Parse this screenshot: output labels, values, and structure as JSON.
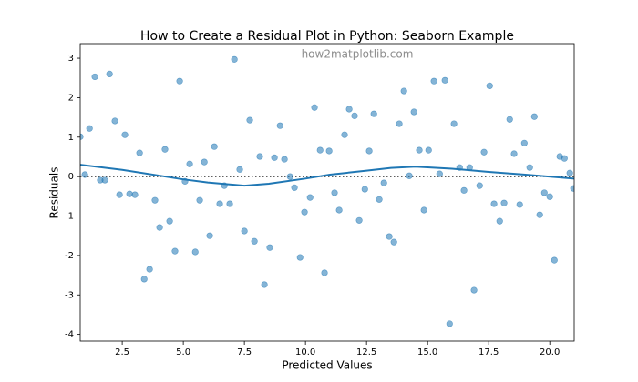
{
  "chart_data": {
    "type": "scatter",
    "title": "How to Create a Residual Plot in Python: Seaborn Example",
    "annotation": "how2matplotlib.com",
    "xlabel": "Predicted Values",
    "ylabel": "Residuals",
    "xlim": [
      0.78,
      21.0
    ],
    "ylim": [
      -4.17,
      3.37
    ],
    "xticks": [
      2.5,
      {
        "value": 5,
        "label": "5.0"
      },
      7.5,
      {
        "value": 10,
        "label": "10.0"
      },
      12.5,
      {
        "value": 15,
        "label": "15.0"
      },
      17.5,
      {
        "value": 20,
        "label": "20.0"
      }
    ],
    "yticks": [
      3,
      2,
      1,
      0,
      -1,
      -2,
      -3,
      -4
    ],
    "hline": 0,
    "series": [
      {
        "type": "scatter",
        "color": "#1f77b4",
        "x": [
          0.78,
          0.97,
          1.16,
          1.38,
          1.6,
          1.79,
          1.98,
          2.2,
          2.39,
          2.61,
          2.8,
          3.02,
          3.21,
          3.4,
          3.62,
          3.84,
          4.03,
          4.25,
          4.44,
          4.66,
          4.85,
          5.07,
          5.26,
          5.49,
          5.67,
          5.86,
          6.08,
          6.27,
          6.49,
          6.68,
          6.9,
          7.09,
          7.31,
          7.5,
          7.72,
          7.91,
          8.13,
          8.32,
          8.54,
          8.73,
          8.96,
          9.14,
          9.37,
          9.55,
          9.78,
          9.96,
          10.19,
          10.37,
          10.6,
          10.78,
          10.97,
          11.19,
          11.38,
          11.6,
          11.79,
          12.01,
          12.2,
          12.43,
          12.61,
          12.8,
          13.02,
          13.21,
          13.43,
          13.62,
          13.84,
          14.03,
          14.25,
          14.44,
          14.66,
          14.85,
          15.04,
          15.26,
          15.49,
          15.71,
          15.9,
          16.08,
          16.31,
          16.49,
          16.72,
          16.9,
          17.13,
          17.31,
          17.54,
          17.72,
          17.95,
          18.13,
          18.36,
          18.54,
          18.77,
          18.96,
          19.18,
          19.37,
          19.59,
          19.78,
          20.0,
          20.19,
          20.41,
          20.6,
          20.82,
          20.97
        ],
        "values": [
          1.01,
          0.05,
          1.22,
          2.53,
          -0.09,
          -0.09,
          2.6,
          1.41,
          -0.46,
          1.06,
          -0.44,
          -0.46,
          0.6,
          -2.6,
          -2.35,
          -0.6,
          -1.29,
          0.69,
          -1.13,
          -1.89,
          2.42,
          -0.12,
          0.32,
          -1.91,
          -0.6,
          0.37,
          -1.5,
          0.76,
          -0.69,
          -0.23,
          -0.69,
          2.97,
          0.18,
          -1.38,
          1.43,
          -1.64,
          0.51,
          -2.74,
          -1.8,
          0.48,
          1.29,
          0.44,
          0,
          -0.28,
          -2.05,
          -0.9,
          -0.53,
          1.75,
          0.67,
          -2.44,
          0.65,
          -0.41,
          -0.85,
          1.06,
          1.71,
          1.54,
          -1.11,
          -0.32,
          0.65,
          1.59,
          -0.58,
          -0.16,
          -1.52,
          -1.66,
          1.34,
          2.17,
          0.02,
          1.64,
          0.67,
          -0.85,
          0.67,
          2.42,
          0.07,
          2.44,
          -3.73,
          1.34,
          0.23,
          -0.35,
          0.23,
          -2.88,
          -0.23,
          0.62,
          2.3,
          -0.69,
          -1.13,
          -0.67,
          1.45,
          0.58,
          -0.71,
          0.85,
          0.23,
          1.52,
          -0.97,
          -0.41,
          -0.51,
          -2.12,
          0.51,
          0.46,
          0.09,
          -0.3
        ]
      },
      {
        "type": "line",
        "color": "#1f77b4",
        "x": [
          0.78,
          2.5,
          5,
          6,
          7.5,
          8.5,
          10,
          11,
          12.5,
          13.5,
          14.5,
          16,
          17.5,
          19,
          21
        ],
        "values": [
          0.3,
          0.17,
          -0.07,
          -0.15,
          -0.23,
          -0.18,
          -0.05,
          0.05,
          0.15,
          0.22,
          0.25,
          0.2,
          0.12,
          0.05,
          -0.05
        ]
      }
    ]
  }
}
